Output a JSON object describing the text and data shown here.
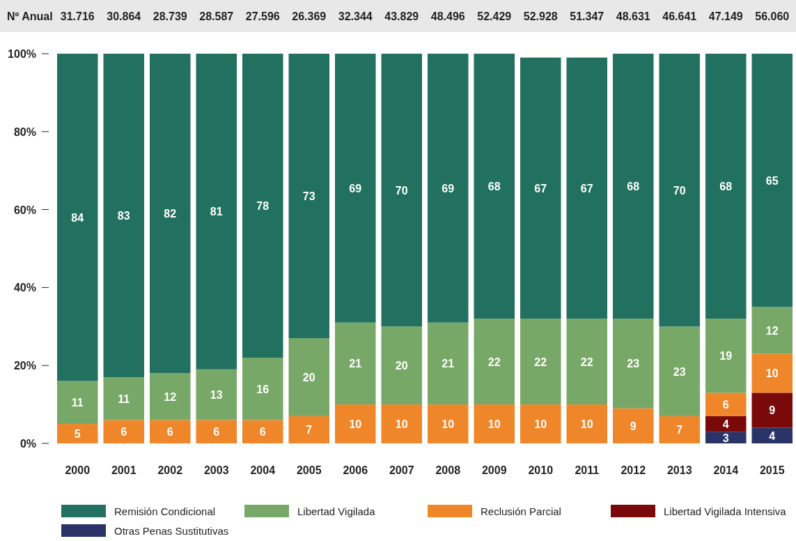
{
  "chart_data": {
    "type": "bar",
    "stacked": true,
    "categories": [
      "2000",
      "2001",
      "2002",
      "2003",
      "2004",
      "2005",
      "2006",
      "2007",
      "2008",
      "2009",
      "2010",
      "2011",
      "2012",
      "2013",
      "2014",
      "2015"
    ],
    "series": [
      {
        "name": "Otras Penas Sustitutivas",
        "color": "#2a3368",
        "values": [
          null,
          null,
          null,
          null,
          null,
          null,
          null,
          null,
          null,
          null,
          null,
          null,
          null,
          null,
          3,
          4
        ]
      },
      {
        "name": "Libertad Vigilada Intensiva",
        "color": "#7a0a0a",
        "values": [
          null,
          null,
          null,
          null,
          null,
          null,
          null,
          null,
          null,
          null,
          null,
          null,
          null,
          null,
          4,
          9
        ]
      },
      {
        "name": "Reclusión Parcial",
        "color": "#f0862a",
        "values": [
          5,
          6,
          6,
          6,
          6,
          7,
          10,
          10,
          10,
          10,
          10,
          10,
          9,
          7,
          6,
          10
        ]
      },
      {
        "name": "Libertad Vigilada",
        "color": "#78a867",
        "values": [
          11,
          11,
          12,
          13,
          16,
          20,
          21,
          20,
          21,
          22,
          22,
          22,
          23,
          23,
          19,
          12
        ]
      },
      {
        "name": "Remisión Condicional",
        "color": "#22705f",
        "values": [
          84,
          83,
          82,
          81,
          78,
          73,
          69,
          70,
          69,
          68,
          67,
          67,
          68,
          70,
          68,
          65
        ]
      }
    ],
    "ylim": [
      0,
      100
    ],
    "yticks": [
      {
        "value": 0,
        "label": "0%"
      },
      {
        "value": 20,
        "label": "20%"
      },
      {
        "value": 40,
        "label": "40%"
      },
      {
        "value": 60,
        "label": "60%"
      },
      {
        "value": 80,
        "label": "80%"
      },
      {
        "value": 100,
        "label": "100%"
      }
    ],
    "data_labels": true,
    "legend": "bottom",
    "annotations": [
      "Nº Anual",
      "31.716",
      "30.864",
      "28.739",
      "28.587",
      "27.596",
      "26.369",
      "32.344",
      "43.829",
      "48.496",
      "52.429",
      "52.928",
      "51.347",
      "48.631",
      "46.641",
      "47.149",
      "56.060"
    ]
  }
}
